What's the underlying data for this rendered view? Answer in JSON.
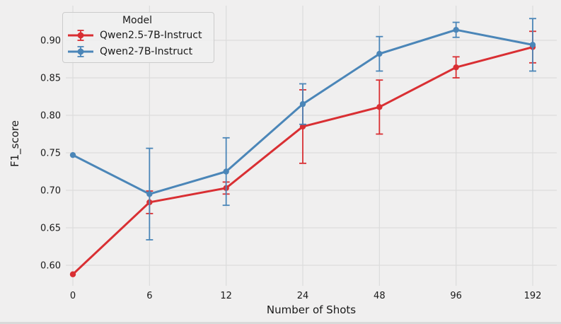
{
  "colors": {
    "background": "#f0efef",
    "gridline": "#dcdcdc",
    "text": "#1a1a1a"
  },
  "chart_data": {
    "type": "line",
    "x_label": "Number of Shots",
    "y_label": "F1_score",
    "categories": [
      "0",
      "6",
      "12",
      "24",
      "48",
      "96",
      "192"
    ],
    "y_ticks": [
      0.6,
      0.65,
      0.7,
      0.75,
      0.8,
      0.85,
      0.9
    ],
    "y_tick_labels": [
      "0.60",
      "0.65",
      "0.70",
      "0.75",
      "0.80",
      "0.85",
      "0.90"
    ],
    "ylim": [
      0.573,
      0.946
    ],
    "grid": true,
    "legend": {
      "title": "Model",
      "position": "upper left"
    },
    "series": [
      {
        "name": "Qwen2.5-7B-Instruct",
        "color": "#d92f33",
        "values": [
          0.588,
          0.684,
          0.703,
          0.785,
          0.811,
          0.864,
          0.891
        ],
        "err": [
          0.0,
          0.015,
          0.008,
          0.049,
          0.036,
          0.014,
          0.021
        ]
      },
      {
        "name": "Qwen2-7B-Instruct",
        "color": "#4b86b8",
        "values": [
          0.747,
          0.695,
          0.725,
          0.815,
          0.882,
          0.914,
          0.894
        ],
        "err": [
          0.0,
          0.061,
          0.045,
          0.027,
          0.023,
          0.01,
          0.035
        ]
      }
    ]
  }
}
